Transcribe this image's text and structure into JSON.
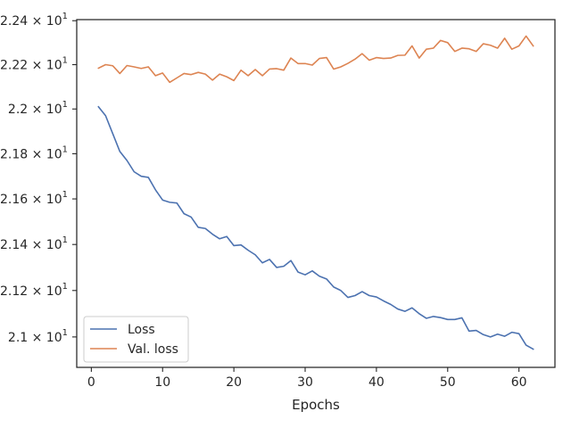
{
  "chart_data": {
    "type": "line",
    "xlabel": "Epochs",
    "ylabel": "",
    "y_scale": "log",
    "xlim": [
      -2.05,
      65.05
    ],
    "ylim": [
      20.87,
      22.405
    ],
    "x_ticks": [
      0,
      10,
      20,
      30,
      40,
      50,
      60
    ],
    "x_tick_labels": [
      "0",
      "10",
      "20",
      "30",
      "40",
      "50",
      "60"
    ],
    "y_ticks": [
      21.0,
      21.2,
      21.4,
      21.6,
      21.8,
      22.0,
      22.2,
      22.4
    ],
    "y_tick_labels": [
      {
        "mantissa": "2.1",
        "exponent": "1"
      },
      {
        "mantissa": "2.12",
        "exponent": "1"
      },
      {
        "mantissa": "2.14",
        "exponent": "1"
      },
      {
        "mantissa": "2.16",
        "exponent": "1"
      },
      {
        "mantissa": "2.18",
        "exponent": "1"
      },
      {
        "mantissa": "2.2",
        "exponent": "1"
      },
      {
        "mantissa": "2.22",
        "exponent": "1"
      },
      {
        "mantissa": "2.24",
        "exponent": "1"
      }
    ],
    "grid": false,
    "legend_position": "lower-left",
    "x": [
      1,
      2,
      3,
      4,
      5,
      6,
      7,
      8,
      9,
      10,
      11,
      12,
      13,
      14,
      15,
      16,
      17,
      18,
      19,
      20,
      21,
      22,
      23,
      24,
      25,
      26,
      27,
      28,
      29,
      30,
      31,
      32,
      33,
      34,
      35,
      36,
      37,
      38,
      39,
      40,
      41,
      42,
      43,
      44,
      45,
      46,
      47,
      48,
      49,
      50,
      51,
      52,
      53,
      54,
      55,
      56,
      57,
      58,
      59,
      60,
      61,
      62
    ],
    "series": [
      {
        "name": "Loss",
        "color": "#4c72b0",
        "values": [
          22.01,
          21.97,
          21.89,
          21.81,
          21.77,
          21.72,
          21.7,
          21.695,
          21.64,
          21.595,
          21.585,
          21.582,
          21.535,
          21.52,
          21.475,
          21.47,
          21.445,
          21.425,
          21.435,
          21.395,
          21.398,
          21.375,
          21.355,
          21.32,
          21.335,
          21.3,
          21.305,
          21.33,
          21.28,
          21.268,
          21.285,
          21.262,
          21.25,
          21.215,
          21.2,
          21.17,
          21.178,
          21.195,
          21.178,
          21.172,
          21.155,
          21.14,
          21.12,
          21.11,
          21.125,
          21.1,
          21.08,
          21.088,
          21.083,
          21.075,
          21.075,
          21.082,
          21.025,
          21.028,
          21.01,
          21.0,
          21.012,
          21.003,
          21.02,
          21.014,
          20.965,
          20.948
        ]
      },
      {
        "name": "Val. loss",
        "color": "#dd8452",
        "values": [
          22.184,
          22.2,
          22.195,
          22.16,
          22.196,
          22.19,
          22.183,
          22.19,
          22.15,
          22.162,
          22.12,
          22.14,
          22.16,
          22.155,
          22.165,
          22.157,
          22.13,
          22.157,
          22.145,
          22.128,
          22.175,
          22.15,
          22.178,
          22.15,
          22.18,
          22.182,
          22.175,
          22.23,
          22.205,
          22.205,
          22.198,
          22.228,
          22.232,
          22.18,
          22.19,
          22.206,
          22.225,
          22.25,
          22.22,
          22.232,
          22.228,
          22.23,
          22.242,
          22.243,
          22.285,
          22.23,
          22.27,
          22.275,
          22.31,
          22.3,
          22.26,
          22.275,
          22.272,
          22.26,
          22.295,
          22.288,
          22.275,
          22.32,
          22.27,
          22.285,
          22.33,
          22.285
        ]
      }
    ]
  }
}
